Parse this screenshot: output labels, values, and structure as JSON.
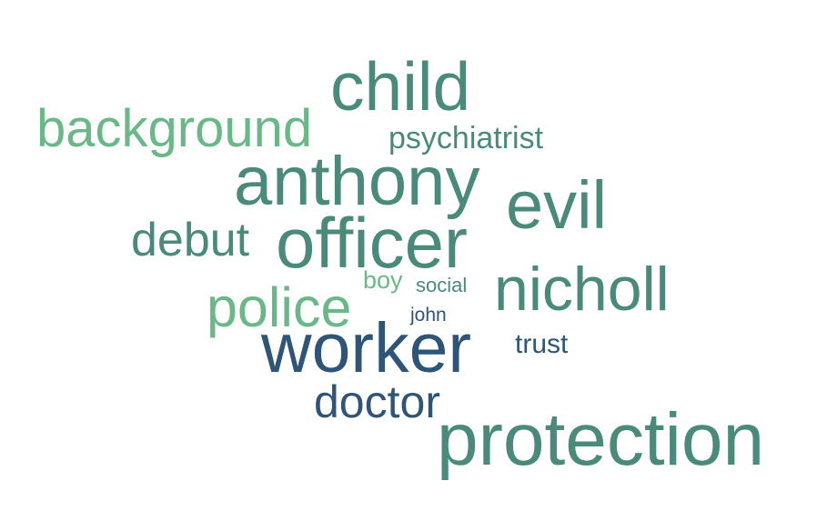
{
  "colors": {
    "teal": "#4a8a7b",
    "light_green": "#6ab887",
    "navy": "#2e5577",
    "background": "#ffffff"
  },
  "words": [
    {
      "text": "child",
      "color": "#4a8a7b"
    },
    {
      "text": "background",
      "color": "#6ab887"
    },
    {
      "text": "psychiatrist",
      "color": "#4a8a7b"
    },
    {
      "text": "anthony",
      "color": "#4a8a7b"
    },
    {
      "text": "evil",
      "color": "#4a8a7b"
    },
    {
      "text": "debut",
      "color": "#4a8a7b"
    },
    {
      "text": "officer",
      "color": "#4a8a7b"
    },
    {
      "text": "nicholl",
      "color": "#4a8a7b"
    },
    {
      "text": "boy",
      "color": "#6ab887"
    },
    {
      "text": "social",
      "color": "#4a8a7b"
    },
    {
      "text": "police",
      "color": "#6ab887"
    },
    {
      "text": "john",
      "color": "#2e5577"
    },
    {
      "text": "worker",
      "color": "#2e5577"
    },
    {
      "text": "trust",
      "color": "#2e5577"
    },
    {
      "text": "doctor",
      "color": "#2e5577"
    },
    {
      "text": "protection",
      "color": "#4a8a7b"
    }
  ]
}
